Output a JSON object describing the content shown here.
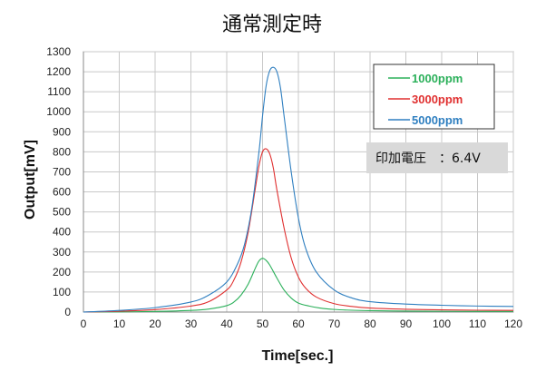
{
  "chart_data": {
    "type": "line",
    "title": "通常測定時",
    "xlabel": "Time[sec.]",
    "ylabel": "Output[mV]",
    "xlim": [
      0,
      120
    ],
    "ylim": [
      0,
      1300
    ],
    "xticks": [
      0,
      10,
      20,
      30,
      40,
      50,
      60,
      70,
      80,
      90,
      100,
      110,
      120
    ],
    "yticks": [
      0,
      100,
      200,
      300,
      400,
      500,
      600,
      700,
      800,
      900,
      1000,
      1100,
      1200,
      1300
    ],
    "grid": true,
    "legend_position": "top-right",
    "annotation": "印加電圧　：6.4V",
    "series": [
      {
        "name": "1000ppm",
        "color": "#2bb05a",
        "x": [
          0,
          10,
          20,
          30,
          35,
          40,
          42,
          44,
          46,
          48,
          49,
          50,
          51,
          52,
          54,
          56,
          58,
          60,
          63,
          66,
          70,
          75,
          80,
          90,
          100,
          110,
          120
        ],
        "y": [
          0,
          1,
          3,
          8,
          15,
          32,
          50,
          85,
          140,
          220,
          255,
          268,
          258,
          235,
          170,
          110,
          70,
          45,
          30,
          20,
          13,
          9,
          7,
          5,
          4,
          3,
          3
        ]
      },
      {
        "name": "3000ppm",
        "color": "#e03030",
        "x": [
          0,
          10,
          20,
          30,
          35,
          40,
          42,
          44,
          46,
          48,
          49,
          50,
          51,
          52,
          53,
          54,
          56,
          58,
          60,
          62,
          65,
          70,
          75,
          80,
          90,
          100,
          110,
          120
        ],
        "y": [
          0,
          4,
          12,
          30,
          52,
          110,
          160,
          250,
          400,
          620,
          730,
          800,
          815,
          790,
          720,
          610,
          420,
          270,
          175,
          120,
          75,
          42,
          28,
          20,
          14,
          11,
          9,
          8
        ],
        "show_legend_color": true
      },
      {
        "name": "5000ppm",
        "color": "#2f7fc0",
        "x": [
          0,
          10,
          20,
          30,
          35,
          40,
          43,
          45,
          47,
          49,
          50,
          51,
          52,
          53,
          54,
          55,
          56,
          58,
          60,
          62,
          65,
          70,
          75,
          80,
          90,
          100,
          110,
          120
        ],
        "y": [
          0,
          8,
          22,
          50,
          85,
          150,
          240,
          340,
          520,
          800,
          980,
          1130,
          1205,
          1222,
          1200,
          1120,
          980,
          700,
          470,
          320,
          200,
          110,
          70,
          52,
          40,
          34,
          30,
          28
        ]
      }
    ]
  }
}
